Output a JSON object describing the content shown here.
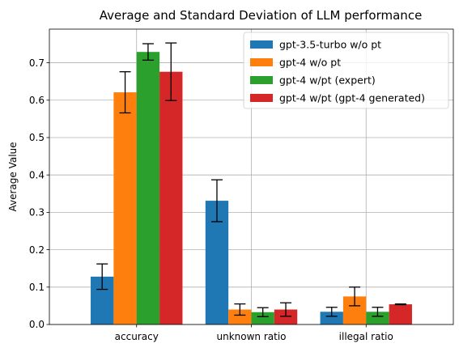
{
  "chart_data": {
    "type": "bar",
    "title": "Average and Standard Deviation of LLM performance",
    "xlabel": "",
    "ylabel": "Average Value",
    "categories": [
      "accuracy",
      "unknown ratio",
      "illegal ratio"
    ],
    "ylim": [
      0,
      0.79
    ],
    "yticks": [
      "0.0",
      "0.1",
      "0.2",
      "0.3",
      "0.4",
      "0.5",
      "0.6",
      "0.7"
    ],
    "grid": true,
    "legend_position": "top-right",
    "series": [
      {
        "name": "gpt-3.5-turbo w/o pt",
        "color": "#1f77b4",
        "values": [
          0.128,
          0.331,
          0.034
        ],
        "errors": [
          0.034,
          0.056,
          0.012
        ]
      },
      {
        "name": "gpt-4 w/o pt",
        "color": "#ff7f0e",
        "values": [
          0.621,
          0.04,
          0.075
        ],
        "errors": [
          0.055,
          0.015,
          0.025
        ]
      },
      {
        "name": "gpt-4 w/pt (expert)",
        "color": "#2ca02c",
        "values": [
          0.729,
          0.033,
          0.034
        ],
        "errors": [
          0.022,
          0.012,
          0.012
        ]
      },
      {
        "name": "gpt-4 w/pt (gpt-4 generated)",
        "color": "#d62728",
        "values": [
          0.676,
          0.04,
          0.054
        ],
        "errors": [
          0.077,
          0.018,
          0.001
        ]
      }
    ]
  }
}
